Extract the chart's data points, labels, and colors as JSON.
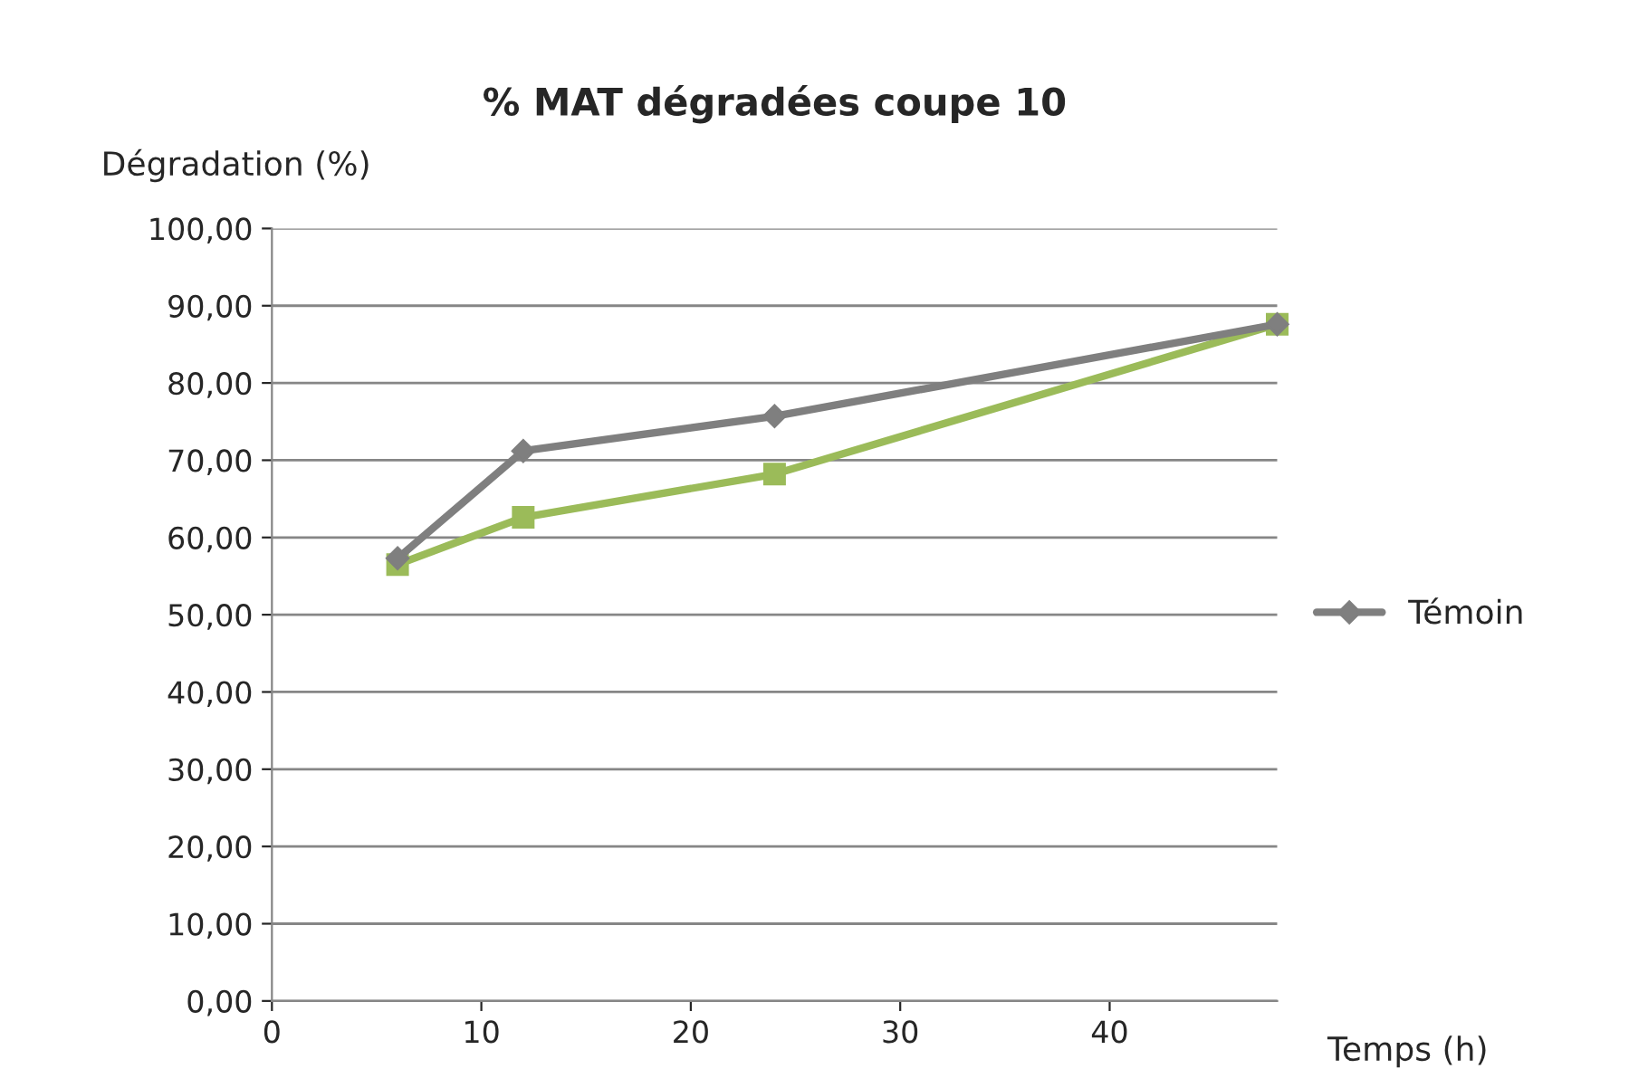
{
  "chart_data": {
    "type": "line",
    "title": "% MAT dégradées coupe 10",
    "xlabel": "Temps (h)",
    "ylabel": "Dégradation (%)",
    "series": [
      {
        "name": "Témoin",
        "color": "#7f7f7f",
        "marker": "diamond",
        "x": [
          6,
          12,
          24,
          48
        ],
        "values": [
          57.3,
          71.2,
          75.7,
          87.6
        ]
      },
      {
        "color": "#9bbb59",
        "marker": "square",
        "x": [
          6,
          12,
          24,
          48
        ],
        "values": [
          56.5,
          62.6,
          68.2,
          87.6
        ]
      }
    ],
    "xlim": [
      0,
      48
    ],
    "xticks": [
      0,
      10,
      20,
      30,
      40
    ],
    "ylim": [
      0,
      100
    ],
    "yticks": [
      {
        "value": 0,
        "label": "0,00"
      },
      {
        "value": 10,
        "label": "10,00"
      },
      {
        "value": 20,
        "label": "20,00"
      },
      {
        "value": 30,
        "label": "30,00"
      },
      {
        "value": 40,
        "label": "40,00"
      },
      {
        "value": 50,
        "label": "50,00"
      },
      {
        "value": 60,
        "label": "60,00"
      },
      {
        "value": 70,
        "label": "70,00"
      },
      {
        "value": 80,
        "label": "80,00"
      },
      {
        "value": 90,
        "label": "90,00"
      },
      {
        "value": 100,
        "label": "100,00"
      }
    ],
    "grid": "y",
    "legend": "right",
    "line_style": "solid"
  }
}
